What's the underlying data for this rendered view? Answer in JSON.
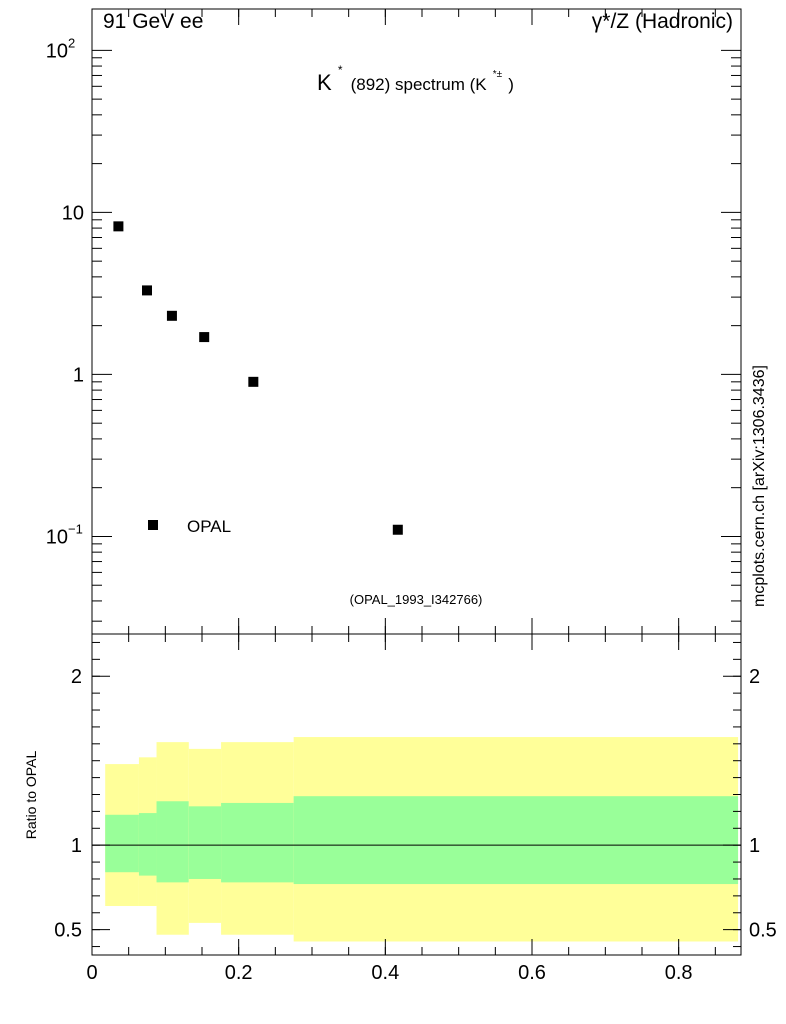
{
  "header": {
    "left_label": "91 GeV ee",
    "right_label": "γ*/Z (Hadronic)"
  },
  "title": {
    "main": "K",
    "main_sup": "*",
    "rest": "(892) spectrum (K",
    "rest_sup": "*±",
    "close": ")"
  },
  "analysis_id": "(OPAL_1993_I342766)",
  "side_label": "mcplots.cern.ch [arXiv:1306.3436]",
  "legend": {
    "opal": "OPAL"
  },
  "colors": {
    "band_outer": "#ffff99",
    "band_inner": "#99ff99",
    "data": "#000000",
    "analysis_text": "#888888"
  },
  "chart_data": [
    {
      "type": "scatter",
      "name": "main",
      "yscale": "log",
      "ylim": [
        0.025,
        180
      ],
      "xlim": [
        0,
        0.885
      ],
      "y_ticks": [
        {
          "v": 100,
          "base": "10",
          "exp": "2"
        },
        {
          "v": 10,
          "base": "10",
          "exp": ""
        },
        {
          "v": 1,
          "base": "1",
          "exp": ""
        },
        {
          "v": 0.1,
          "base": "10",
          "exp": "−1"
        }
      ],
      "series": [
        {
          "name": "OPAL",
          "x": [
            0.036,
            0.075,
            0.109,
            0.153,
            0.22,
            0.417
          ],
          "y": [
            8.2,
            3.3,
            2.3,
            1.7,
            0.9,
            0.11
          ]
        }
      ]
    },
    {
      "type": "ratio",
      "name": "ratio",
      "ylabel": "Ratio to OPAL",
      "ylim": [
        0.35,
        2.25
      ],
      "xlim": [
        0,
        0.885
      ],
      "y_ticks": [
        {
          "v": 2,
          "label": "2"
        },
        {
          "v": 1,
          "label": "1"
        },
        {
          "v": 0.5,
          "label": "0.5"
        }
      ],
      "x_ticks": [
        {
          "v": 0,
          "label": "0"
        },
        {
          "v": 0.2,
          "label": "0.2"
        },
        {
          "v": 0.4,
          "label": "0.4"
        },
        {
          "v": 0.6,
          "label": "0.6"
        },
        {
          "v": 0.8,
          "label": "0.8"
        }
      ],
      "bands": [
        {
          "x0": 0.018,
          "x1": 0.064,
          "outer": [
            0.64,
            1.48
          ],
          "inner": [
            0.84,
            1.18
          ]
        },
        {
          "x0": 0.064,
          "x1": 0.088,
          "outer": [
            0.64,
            1.52
          ],
          "inner": [
            0.82,
            1.19
          ]
        },
        {
          "x0": 0.088,
          "x1": 0.132,
          "outer": [
            0.47,
            1.61
          ],
          "inner": [
            0.78,
            1.26
          ]
        },
        {
          "x0": 0.132,
          "x1": 0.176,
          "outer": [
            0.54,
            1.57
          ],
          "inner": [
            0.8,
            1.23
          ]
        },
        {
          "x0": 0.176,
          "x1": 0.275,
          "outer": [
            0.47,
            1.61
          ],
          "inner": [
            0.78,
            1.25
          ]
        },
        {
          "x0": 0.275,
          "x1": 0.881,
          "outer": [
            0.43,
            1.64
          ],
          "inner": [
            0.77,
            1.29
          ]
        }
      ],
      "reference": 1
    }
  ]
}
